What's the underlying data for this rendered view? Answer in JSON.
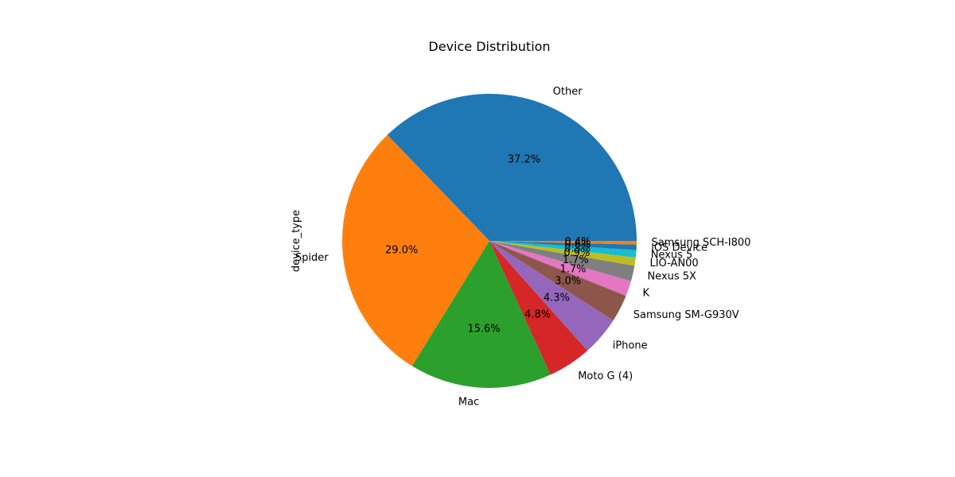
{
  "chart_data": {
    "type": "pie",
    "title": "Device Distribution",
    "ylabel": "device_type",
    "start_angle_deg": 0,
    "direction": "counterclockwise",
    "slices": [
      {
        "label": "Other",
        "value": 37.2,
        "pct_label": "37.2%",
        "color": "#1f77b4"
      },
      {
        "label": "Spider",
        "value": 29.0,
        "pct_label": "29.0%",
        "color": "#ff7f0e"
      },
      {
        "label": "Mac",
        "value": 15.6,
        "pct_label": "15.6%",
        "color": "#2ca02c"
      },
      {
        "label": "Moto G (4)",
        "value": 4.8,
        "pct_label": "4.8%",
        "color": "#d62728"
      },
      {
        "label": "iPhone",
        "value": 4.3,
        "pct_label": "4.3%",
        "color": "#9467bd"
      },
      {
        "label": "Samsung SM-G930V",
        "value": 3.0,
        "pct_label": "3.0%",
        "color": "#8c564b"
      },
      {
        "label": "K",
        "value": 1.7,
        "pct_label": "1.7%",
        "color": "#e377c2"
      },
      {
        "label": "Nexus 5X",
        "value": 1.7,
        "pct_label": "1.7%",
        "color": "#7f7f7f"
      },
      {
        "label": "LIO-AN00",
        "value": 0.9,
        "pct_label": "0.9%",
        "color": "#bcbd22"
      },
      {
        "label": "Nexus 5",
        "value": 0.8,
        "pct_label": "0.8%",
        "color": "#17becf"
      },
      {
        "label": "iOS Device",
        "value": 0.6,
        "pct_label": "0.6%",
        "color": "#1f77b4"
      },
      {
        "label": "Samsung SCH-I800",
        "value": 0.4,
        "pct_label": "0.4%",
        "color": "#ff7f0e"
      }
    ]
  }
}
